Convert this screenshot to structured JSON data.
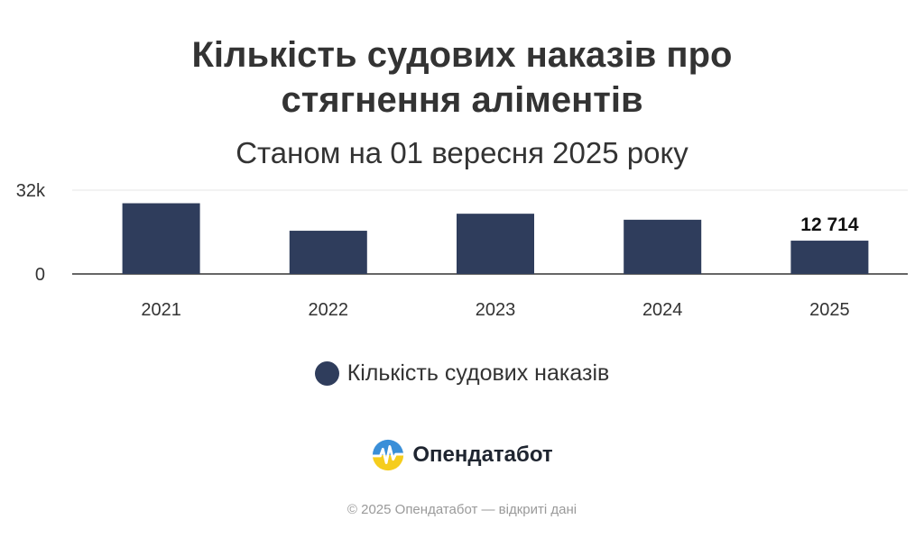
{
  "header": {
    "title_line1": "Кількість судових наказів про",
    "title_line2": "стягнення аліментів",
    "subtitle": "Станом на 01 вересня 2025 року"
  },
  "chart_data": {
    "type": "bar",
    "categories": [
      "2021",
      "2022",
      "2023",
      "2024",
      "2025"
    ],
    "series": [
      {
        "name": "Кількість судових наказів",
        "values": [
          27000,
          16500,
          23000,
          20700,
          12714
        ]
      }
    ],
    "data_labels": [
      "",
      "",
      "",
      "",
      "12 714"
    ],
    "ylim": [
      0,
      32000
    ],
    "yticks": [
      {
        "value": 0,
        "label": "0"
      },
      {
        "value": 32000,
        "label": "32k"
      }
    ],
    "grid": true,
    "legend_position": "bottom",
    "bar_color": "#2f3d5c"
  },
  "legend": {
    "label": "Кількість судових наказів",
    "color": "#2f3d5c"
  },
  "brand": {
    "name": "Опендатабот",
    "logo_icon": "opendatabot-logo-icon"
  },
  "footer": {
    "text": "© 2025 Опендатабот — відкриті дані"
  }
}
